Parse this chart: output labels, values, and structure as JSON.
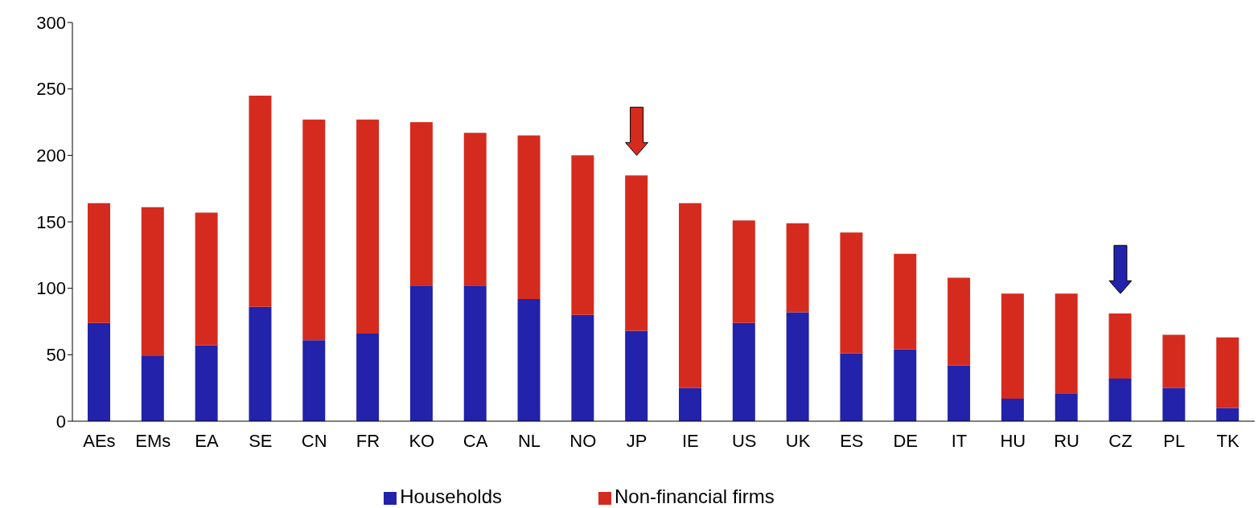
{
  "chart_data": {
    "type": "bar",
    "stacked": true,
    "categories": [
      "AEs",
      "EMs",
      "EA",
      "SE",
      "CN",
      "FR",
      "KO",
      "CA",
      "NL",
      "NO",
      "JP",
      "IE",
      "US",
      "UK",
      "ES",
      "DE",
      "IT",
      "HU",
      "RU",
      "CZ",
      "PL",
      "TK"
    ],
    "series": [
      {
        "name": "Households",
        "color": "#2222aa",
        "values": [
          74,
          49,
          57,
          86,
          61,
          66,
          102,
          102,
          92,
          80,
          68,
          25,
          74,
          82,
          51,
          54,
          42,
          17,
          21,
          32,
          25,
          10
        ]
      },
      {
        "name": "Non-financial firms",
        "color": "#d52b1e",
        "values": [
          90,
          112,
          100,
          159,
          166,
          161,
          123,
          115,
          123,
          120,
          117,
          139,
          77,
          67,
          91,
          72,
          66,
          79,
          75,
          49,
          40,
          53
        ]
      }
    ],
    "ylim": [
      0,
      300
    ],
    "yticks": [
      0,
      50,
      100,
      150,
      200,
      250,
      300
    ],
    "grid": false,
    "legend": "bottom"
  }
}
